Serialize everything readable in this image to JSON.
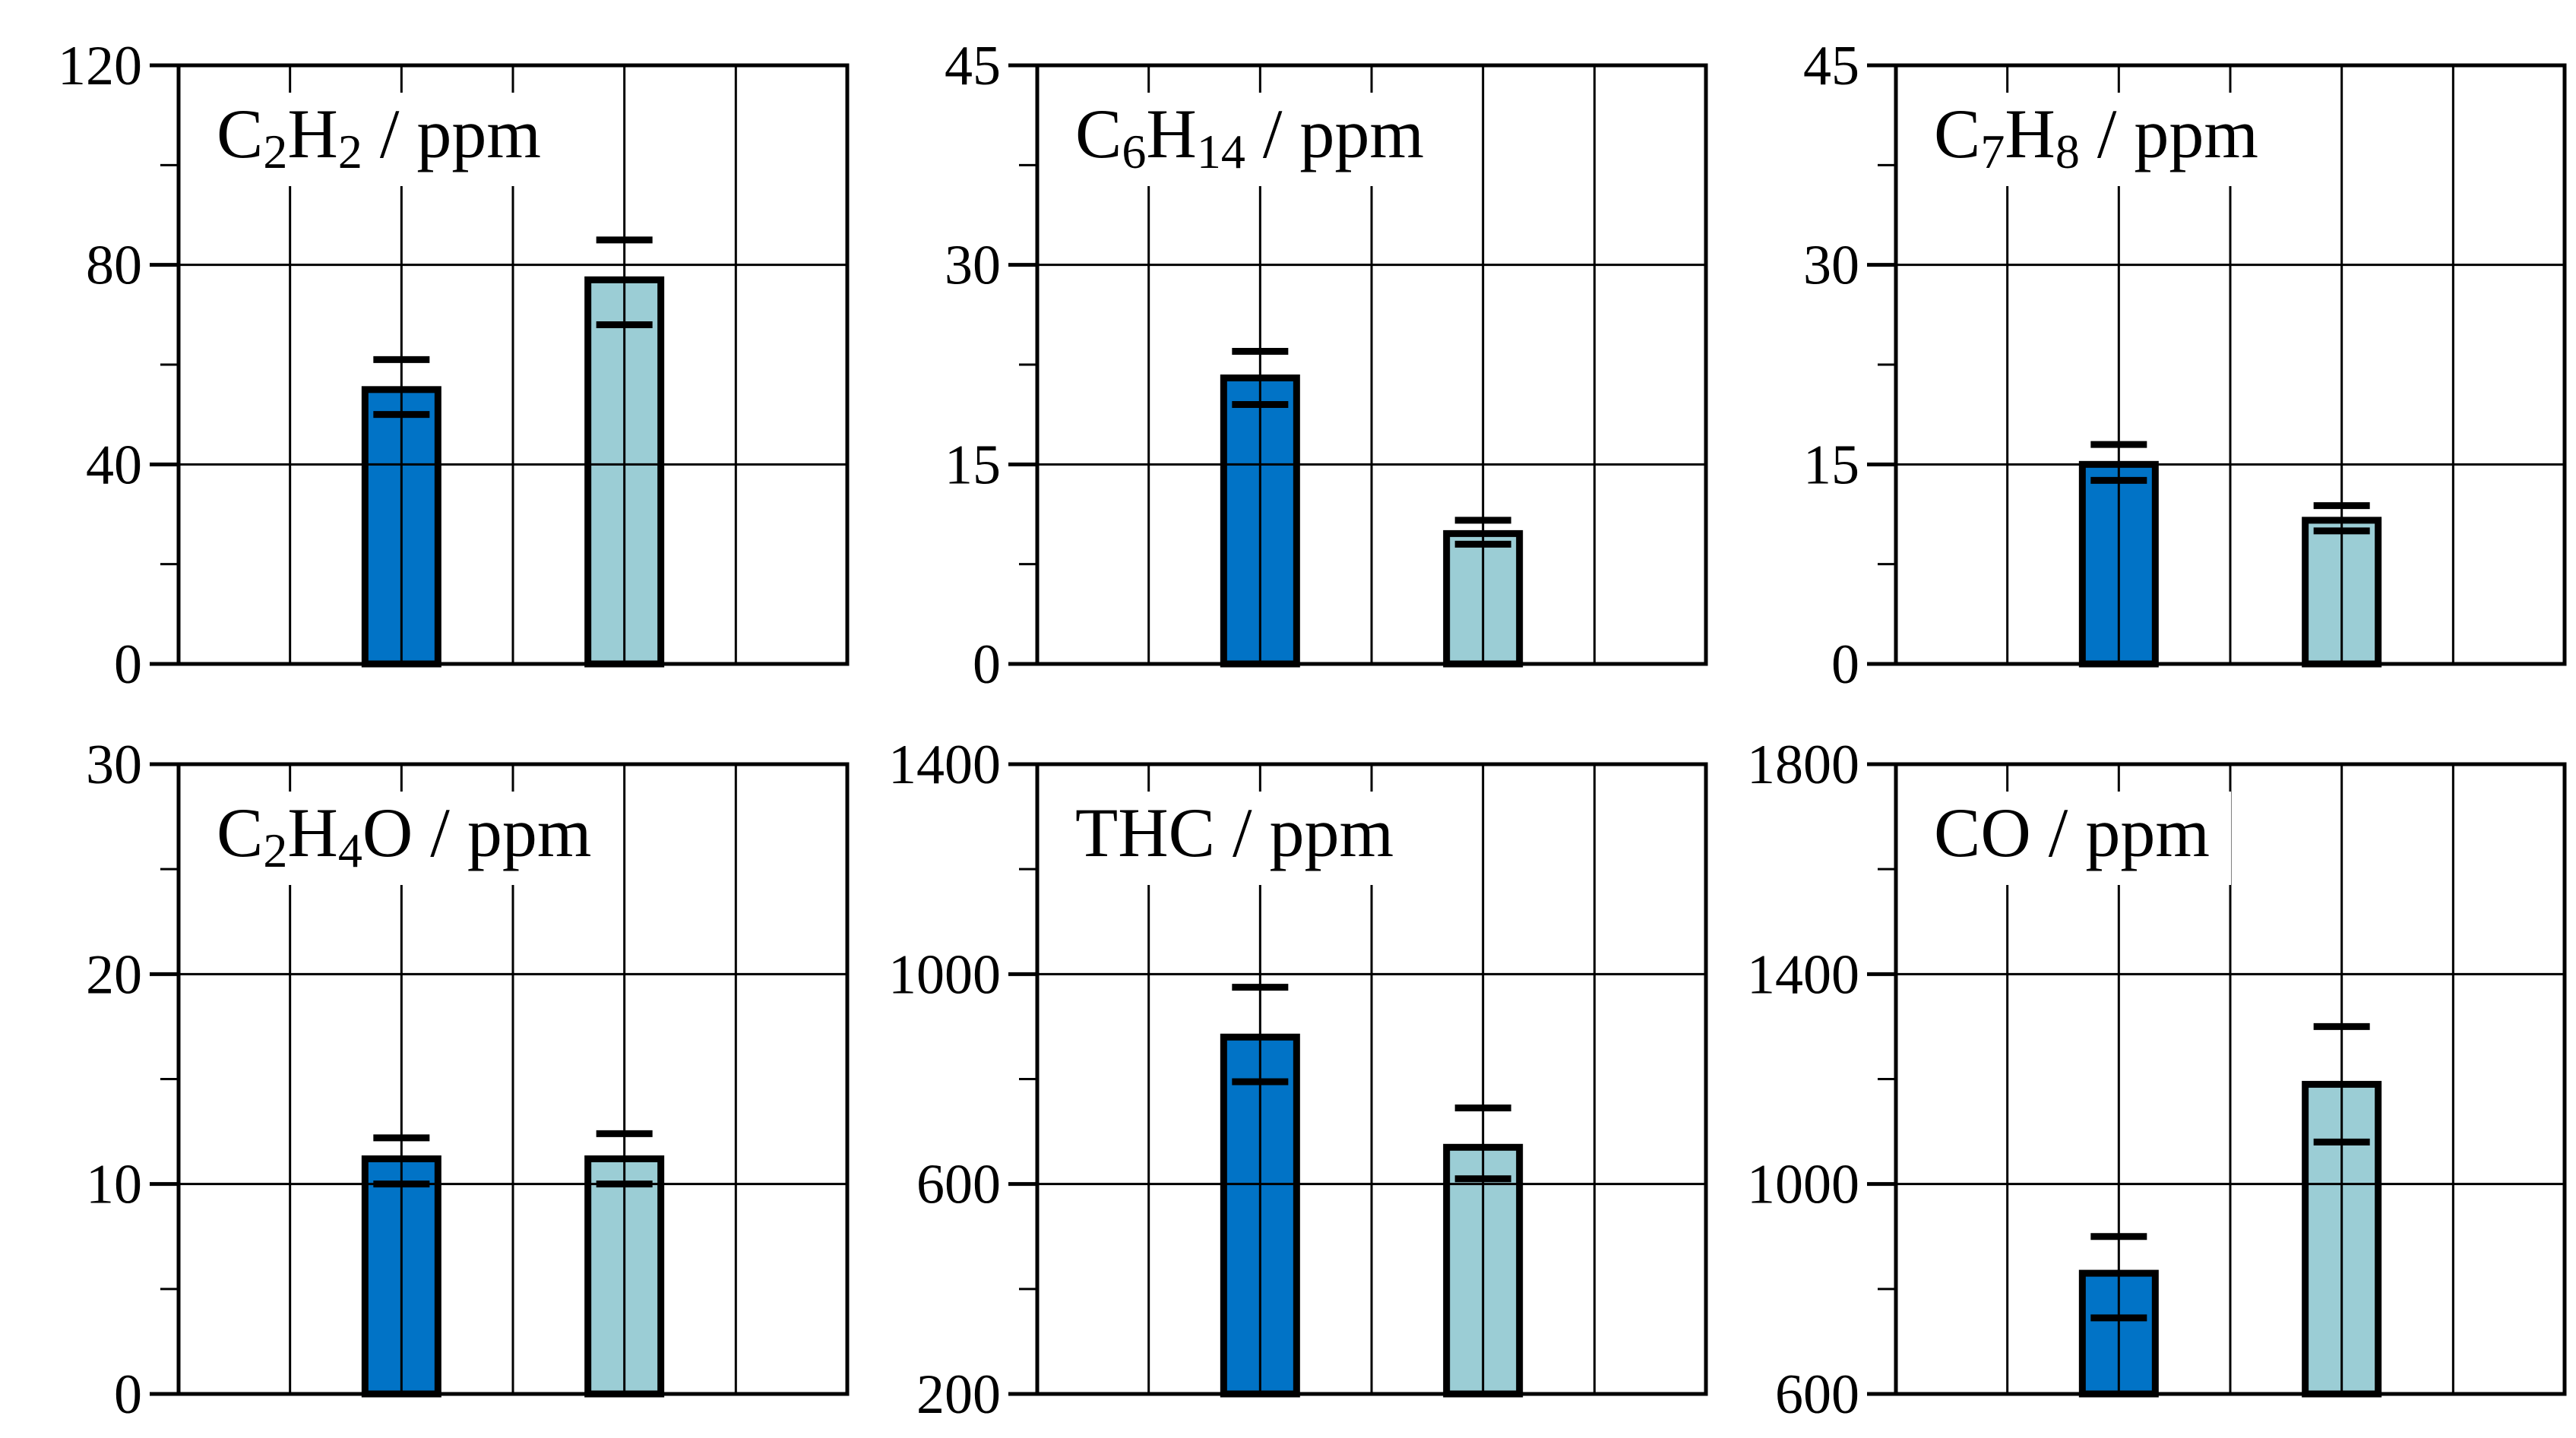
{
  "figure": {
    "background": "#ffffff",
    "unit_suffix": " / ppm",
    "panels_rows": 2,
    "panels_cols": 3
  },
  "palette": {
    "dark_bar_fill": "#0173C6",
    "light_bar_fill": "#9BCDD5",
    "line_color": "#000000",
    "axis_label_color": "#000000"
  },
  "chart_data": [
    {
      "id": "c2h2",
      "type": "bar",
      "title_plain": "C2H2 / ppm",
      "title_segments": [
        [
          "C",
          "n"
        ],
        [
          "2",
          "s"
        ],
        [
          "H",
          "n"
        ],
        [
          "2",
          "s"
        ],
        [
          " / ppm",
          "n"
        ]
      ],
      "xlabel": "",
      "ylabel": "",
      "ylim": [
        0,
        120
      ],
      "yticks_major": [
        0,
        40,
        80,
        120
      ],
      "yticks_minor": [
        20,
        60,
        100
      ],
      "h_gridlines": [
        40,
        80
      ],
      "v_grid_intervals": 6,
      "legend": "none",
      "bars": [
        {
          "series": "dark_blue",
          "value": 55,
          "err_cap_high": 61,
          "err_cap_low": 50
        },
        {
          "series": "light_blue",
          "value": 77,
          "err_cap_high": 85,
          "err_cap_low": 68
        }
      ]
    },
    {
      "id": "c6h14",
      "type": "bar",
      "title_plain": "C6H14 / ppm",
      "title_segments": [
        [
          "C",
          "n"
        ],
        [
          "6",
          "s"
        ],
        [
          "H",
          "n"
        ],
        [
          "14",
          "s"
        ],
        [
          " / ppm",
          "n"
        ]
      ],
      "xlabel": "",
      "ylabel": "",
      "ylim": [
        0,
        45
      ],
      "yticks_major": [
        0,
        15,
        30,
        45
      ],
      "yticks_minor": [
        7.5,
        22.5,
        37.5
      ],
      "h_gridlines": [
        15,
        30
      ],
      "v_grid_intervals": 6,
      "legend": "none",
      "bars": [
        {
          "series": "dark_blue",
          "value": 21.5,
          "err_cap_high": 23.5,
          "err_cap_low": 19.5
        },
        {
          "series": "light_blue",
          "value": 9.8,
          "err_cap_high": 10.8,
          "err_cap_low": 9.0
        }
      ]
    },
    {
      "id": "c7h8",
      "type": "bar",
      "title_plain": "C7H8 / ppm",
      "title_segments": [
        [
          "C",
          "n"
        ],
        [
          "7",
          "s"
        ],
        [
          "H",
          "n"
        ],
        [
          "8",
          "s"
        ],
        [
          " / ppm",
          "n"
        ]
      ],
      "xlabel": "",
      "ylabel": "",
      "ylim": [
        0,
        45
      ],
      "yticks_major": [
        0,
        15,
        30,
        45
      ],
      "yticks_minor": [
        7.5,
        22.5,
        37.5
      ],
      "h_gridlines": [
        15,
        30
      ],
      "v_grid_intervals": 6,
      "legend": "none",
      "bars": [
        {
          "series": "dark_blue",
          "value": 15.0,
          "err_cap_high": 16.5,
          "err_cap_low": 13.8
        },
        {
          "series": "light_blue",
          "value": 10.8,
          "err_cap_high": 11.9,
          "err_cap_low": 10.0
        }
      ]
    },
    {
      "id": "c2h4o",
      "type": "bar",
      "title_plain": "C2H4O / ppm",
      "title_segments": [
        [
          "C",
          "n"
        ],
        [
          "2",
          "s"
        ],
        [
          "H",
          "n"
        ],
        [
          "4",
          "s"
        ],
        [
          "O / ppm",
          "n"
        ]
      ],
      "xlabel": "",
      "ylabel": "",
      "ylim": [
        0,
        30
      ],
      "yticks_major": [
        0,
        10,
        20,
        30
      ],
      "yticks_minor": [
        5,
        15,
        25
      ],
      "h_gridlines": [
        10,
        20
      ],
      "v_grid_intervals": 6,
      "legend": "none",
      "bars": [
        {
          "series": "dark_blue",
          "value": 11.2,
          "err_cap_high": 12.2,
          "err_cap_low": 10.0
        },
        {
          "series": "light_blue",
          "value": 11.2,
          "err_cap_high": 12.4,
          "err_cap_low": 10.0
        }
      ]
    },
    {
      "id": "thc",
      "type": "bar",
      "title_plain": "THC / ppm",
      "title_segments": [
        [
          "THC / ppm",
          "n"
        ]
      ],
      "xlabel": "",
      "ylabel": "",
      "ylim": [
        200,
        1400
      ],
      "yticks_major": [
        200,
        600,
        1000,
        1400
      ],
      "yticks_minor": [
        400,
        800,
        1200
      ],
      "h_gridlines": [
        600,
        1000
      ],
      "v_grid_intervals": 6,
      "legend": "none",
      "bars": [
        {
          "series": "dark_blue",
          "value": 880,
          "err_cap_high": 975,
          "err_cap_low": 795
        },
        {
          "series": "light_blue",
          "value": 670,
          "err_cap_high": 745,
          "err_cap_low": 610
        }
      ]
    },
    {
      "id": "co",
      "type": "bar",
      "title_plain": "CO / ppm",
      "title_segments": [
        [
          "CO / ppm",
          "n"
        ]
      ],
      "xlabel": "",
      "ylabel": "",
      "ylim": [
        600,
        1800
      ],
      "yticks_major": [
        600,
        1000,
        1400,
        1800
      ],
      "yticks_minor": [
        800,
        1200,
        1600
      ],
      "h_gridlines": [
        1000,
        1400
      ],
      "v_grid_intervals": 6,
      "legend": "none",
      "bars": [
        {
          "series": "dark_blue",
          "value": 830,
          "err_cap_high": 900,
          "err_cap_low": 745
        },
        {
          "series": "light_blue",
          "value": 1190,
          "err_cap_high": 1300,
          "err_cap_low": 1080
        }
      ]
    }
  ]
}
